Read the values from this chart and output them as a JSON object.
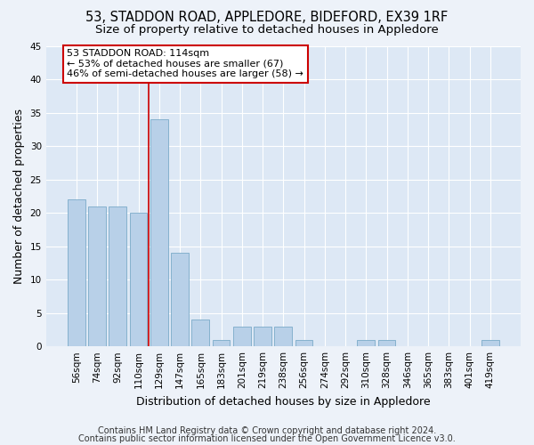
{
  "title": "53, STADDON ROAD, APPLEDORE, BIDEFORD, EX39 1RF",
  "subtitle": "Size of property relative to detached houses in Appledore",
  "xlabel": "Distribution of detached houses by size in Appledore",
  "ylabel": "Number of detached properties",
  "categories": [
    "56sqm",
    "74sqm",
    "92sqm",
    "110sqm",
    "129sqm",
    "147sqm",
    "165sqm",
    "183sqm",
    "201sqm",
    "219sqm",
    "238sqm",
    "256sqm",
    "274sqm",
    "292sqm",
    "310sqm",
    "328sqm",
    "346sqm",
    "365sqm",
    "383sqm",
    "401sqm",
    "419sqm"
  ],
  "values": [
    22,
    21,
    21,
    20,
    34,
    14,
    4,
    1,
    3,
    3,
    3,
    1,
    0,
    0,
    1,
    1,
    0,
    0,
    0,
    0,
    1
  ],
  "bar_color": "#b8d0e8",
  "bar_edge_color": "#7aaac8",
  "property_line_x": 3.5,
  "property_line_color": "#cc0000",
  "annotation_line1": "53 STADDON ROAD: 114sqm",
  "annotation_line2": "← 53% of detached houses are smaller (67)",
  "annotation_line3": "46% of semi-detached houses are larger (58) →",
  "annotation_box_color": "#ffffff",
  "annotation_box_edge_color": "#cc0000",
  "ylim": [
    0,
    45
  ],
  "yticks": [
    0,
    5,
    10,
    15,
    20,
    25,
    30,
    35,
    40,
    45
  ],
  "footer_line1": "Contains HM Land Registry data © Crown copyright and database right 2024.",
  "footer_line2": "Contains public sector information licensed under the Open Government Licence v3.0.",
  "bg_color": "#edf2f9",
  "plot_bg_color": "#dde8f5",
  "grid_color": "#ffffff",
  "title_fontsize": 10.5,
  "subtitle_fontsize": 9.5,
  "axis_label_fontsize": 9,
  "tick_fontsize": 7.5,
  "annotation_fontsize": 8,
  "footer_fontsize": 7
}
